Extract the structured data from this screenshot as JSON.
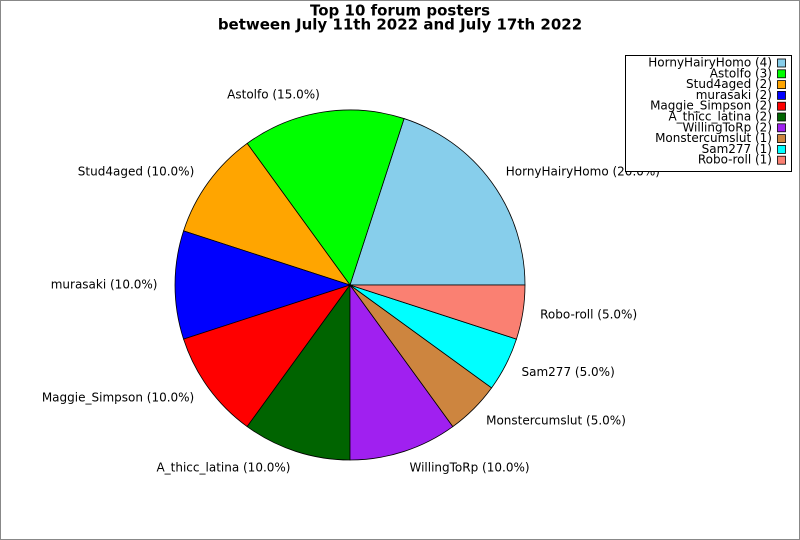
{
  "chart_data": {
    "type": "pie",
    "title": "Top 10 forum posters",
    "subtitle": "between July 11th 2022 and July 17th 2022",
    "categories": [
      "HornyHairyHomo",
      "Astolfo",
      "Stud4aged",
      "murasaki",
      "Maggie_Simpson",
      "A_thicc_latina",
      "WillingToRp",
      "Monstercumslut",
      "Sam277",
      "Robo-roll"
    ],
    "values": [
      20,
      15,
      10,
      10,
      10,
      10,
      10,
      5,
      5,
      5
    ],
    "value_labels": [
      "HornyHairyHomo (20.0%)",
      "Astolfo (15.0%)",
      "Stud4aged (10.0%)",
      "murasaki (10.0%)",
      "Maggie_Simpson (10.0%)",
      "A_thicc_latina (10.0%)",
      "WillingToRp (10.0%)",
      "Monstercumslut (5.0%)",
      "Sam277 (5.0%)",
      "Robo-roll (5.0%)"
    ],
    "legend_labels": [
      "HornyHairyHomo (4)",
      "Astolfo (3)",
      "Stud4aged (2)",
      "murasaki (2)",
      "Maggie_Simpson (2)",
      "A_thicc_latina (2)",
      "WillingToRp (2)",
      "Monstercumslut (1)",
      "Sam277 (1)",
      "Robo-roll (1)"
    ],
    "colors": [
      "#87ceeb",
      "#00ff00",
      "#ffa500",
      "#0000ff",
      "#ff0000",
      "#006400",
      "#a020f0",
      "#cd853f",
      "#00ffff",
      "#fa8072"
    ],
    "legend": "upper right"
  }
}
